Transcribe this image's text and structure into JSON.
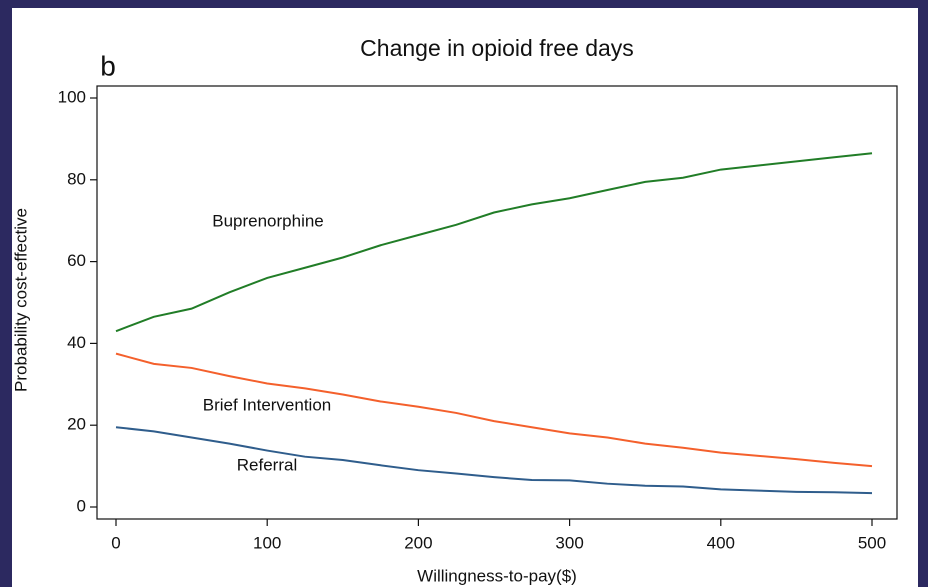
{
  "chart_data": {
    "type": "line",
    "title": "Change in opioid free days",
    "panel_label": "b",
    "xlabel": "Willingness-to-pay($)",
    "ylabel": "Probability cost-effective",
    "x": [
      0,
      25,
      50,
      75,
      100,
      125,
      150,
      175,
      200,
      225,
      250,
      275,
      300,
      325,
      350,
      375,
      400,
      425,
      450,
      475,
      500
    ],
    "series": [
      {
        "name": "Buprenorphine",
        "color": "#217d27",
        "values": [
          43,
          46.5,
          48.5,
          52.5,
          56,
          58.5,
          61,
          64,
          66.5,
          69,
          72,
          74,
          75.5,
          77.5,
          79.5,
          80.5,
          82.5,
          83.5,
          84.5,
          85.5,
          86.5
        ]
      },
      {
        "name": "Brief Intervention",
        "color": "#f4602c",
        "values": [
          37.5,
          35,
          34,
          32,
          30.2,
          29,
          27.5,
          25.8,
          24.5,
          23,
          21,
          19.5,
          18,
          17,
          15.5,
          14.5,
          13.3,
          12.5,
          11.7,
          10.8,
          10
        ]
      },
      {
        "name": "Referral",
        "color": "#2f5d8c",
        "values": [
          19.5,
          18.5,
          17,
          15.5,
          13.8,
          12.3,
          11.5,
          10.2,
          9,
          8.2,
          7.3,
          6.6,
          6.5,
          5.7,
          5.2,
          5,
          4.3,
          4,
          3.7,
          3.6,
          3.4
        ]
      }
    ],
    "xlim": [
      0,
      500
    ],
    "xticks": [
      0,
      100,
      200,
      300,
      400,
      500
    ],
    "ylim": [
      0,
      100
    ],
    "yticks": [
      0,
      20,
      40,
      60,
      80,
      100
    ],
    "grid": false
  }
}
